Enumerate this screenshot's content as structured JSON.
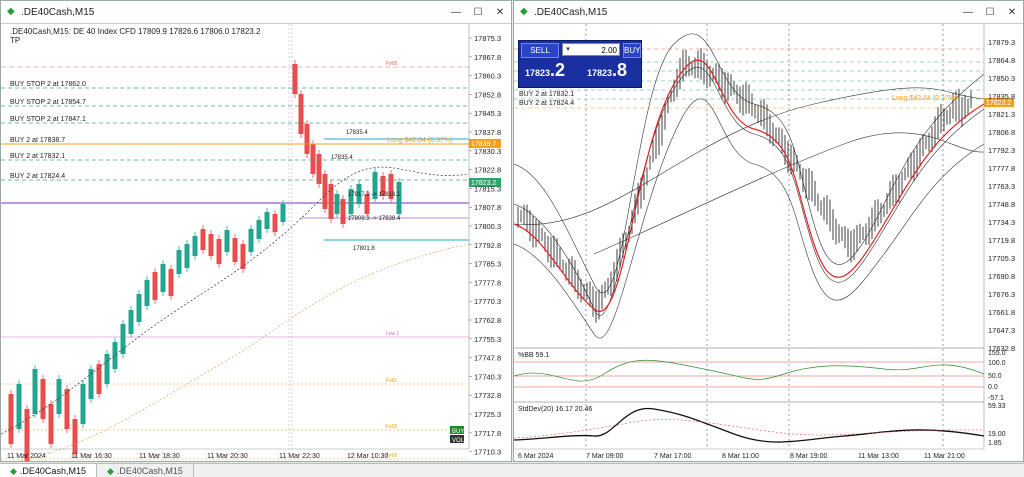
{
  "left_window": {
    "title": ".DE40Cash,M15",
    "info_line": ".DE40Cash,M15:  DE 40 Index CFD  17809.9 17826.6 17806.0 17823.2",
    "tp_label": "TP",
    "orders": [
      {
        "label": "BUY STOP 2 at 17862.0",
        "price": 17862.0
      },
      {
        "label": "BUY STOP 2 at 17854.7",
        "price": 17854.7
      },
      {
        "label": "BUY STOP 2 at 17847.1",
        "price": 17847.1
      },
      {
        "label": "BUY 2 at 17838.7",
        "price": 17838.7
      },
      {
        "label": "BUY 2 at 17832.1",
        "price": 17832.1
      },
      {
        "label": "BUY 2 at 17824.4",
        "price": 17824.4
      }
    ],
    "position_label": "Long  $42.84 (0.37%)",
    "position_price_badge": "17839.7",
    "bid_badge": "17823.2",
    "annotations": [
      "17835.4",
      "17835.4",
      "17817.9 -> 17818.1",
      "17808.3 -> 17838.4",
      "17801.8"
    ],
    "level_labels": [
      "Fx68",
      "Low 1",
      "Fx61",
      "Fx68",
      "Fx68"
    ],
    "price_axis": [
      "17875.3",
      "17867.8",
      "17860.3",
      "17852.8",
      "17845.3",
      "17837.8",
      "17830.3",
      "17822.8",
      "17815.3",
      "17807.8",
      "17800.3",
      "17792.8",
      "17785.3",
      "17777.8",
      "17770.3",
      "17762.8",
      "17755.3",
      "17747.8",
      "17740.3",
      "17732.8",
      "17725.3",
      "17717.8",
      "17710.3"
    ],
    "time_axis": [
      "11 Mar 2024",
      "11 Mar 16:30",
      "11 Mar 18:30",
      "11 Mar 20:30",
      "11 Mar 22:30",
      "12 Mar 10:30"
    ],
    "corner_badges": [
      "BUY",
      "VOL"
    ],
    "colors": {
      "bull": "#22a58c",
      "bear": "#e84c4c",
      "order": "#4aa87a",
      "position": "#f0a020",
      "purple": "#7b2fbf",
      "cyan": "#1fa7c9",
      "magenta": "#d070d0"
    }
  },
  "right_window": {
    "title": ".DE40Cash,M15",
    "trade_panel": {
      "sell_label": "SELL",
      "buy_label": "BUY",
      "volume": "2.00",
      "sell_price_small": "17823",
      "sell_price_big": ".2",
      "buy_price_small": "17823",
      "buy_price_big": ".8"
    },
    "orders": [
      {
        "label": "BUY 2 at 17838.7"
      },
      {
        "label": "BUY 2 at 17832.1"
      },
      {
        "label": "BUY 2 at 17824.4"
      }
    ],
    "position_label": "Long  $42.84 (0.37%)",
    "bid_badge": "17823.2",
    "price_axis": [
      "17879.3",
      "17864.8",
      "17850.3",
      "17835.8",
      "17821.3",
      "17806.8",
      "17792.3",
      "17777.8",
      "17763.3",
      "17748.8",
      "17734.3",
      "17719.8",
      "17705.3",
      "17690.8",
      "17676.3",
      "17661.8",
      "17647.3",
      "17632.8"
    ],
    "bb_indicator": {
      "label": "%BB 59.1",
      "axis": [
        "155.0",
        "100.0",
        "50.0",
        "0.0",
        "-57.1"
      ]
    },
    "std_indicator": {
      "label": "StdDev(20) 16.17 20.46",
      "axis": [
        "59.33",
        "19.00",
        "1.85"
      ]
    },
    "time_axis": [
      "6 Mar 2024",
      "7 Mar 09:00",
      "7 Mar 17:00",
      "8 Mar 11:00",
      "8 Mar 19:00",
      "11 Mar 13:00",
      "11 Mar 21:00"
    ]
  },
  "tabs": [
    {
      "label": ".DE40Cash,M15",
      "active": true
    },
    {
      "label": ".DE40Cash,M15",
      "active": false
    }
  ]
}
